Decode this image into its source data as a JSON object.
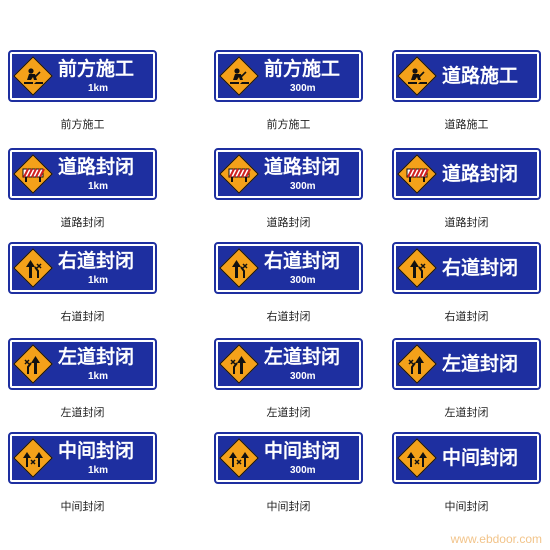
{
  "signs": [
    {
      "title": "前方施工",
      "distance": "1km",
      "caption": "前方施工",
      "icon": "worker-icon"
    },
    {
      "title": "前方施工",
      "distance": "300m",
      "caption": "前方施工",
      "icon": "worker-icon"
    },
    {
      "title": "道路施工",
      "distance": "",
      "caption": "道路施工",
      "icon": "worker-icon"
    },
    {
      "title": "道路封闭",
      "distance": "1km",
      "caption": "道路封闭",
      "icon": "barrier-icon"
    },
    {
      "title": "道路封闭",
      "distance": "300m",
      "caption": "道路封闭",
      "icon": "barrier-icon"
    },
    {
      "title": "道路封闭",
      "distance": "",
      "caption": "道路封闭",
      "icon": "barrier-icon"
    },
    {
      "title": "右道封闭",
      "distance": "1km",
      "caption": "右道封闭",
      "icon": "right-lane-closed-icon"
    },
    {
      "title": "右道封闭",
      "distance": "300m",
      "caption": "右道封闭",
      "icon": "right-lane-closed-icon"
    },
    {
      "title": "右道封闭",
      "distance": "",
      "caption": "右道封闭",
      "icon": "right-lane-closed-icon"
    },
    {
      "title": "左道封闭",
      "distance": "1km",
      "caption": "左道封闭",
      "icon": "left-lane-closed-icon"
    },
    {
      "title": "左道封闭",
      "distance": "300m",
      "caption": "左道封闭",
      "icon": "left-lane-closed-icon"
    },
    {
      "title": "左道封闭",
      "distance": "",
      "caption": "左道封闭",
      "icon": "left-lane-closed-icon"
    },
    {
      "title": "中间封闭",
      "distance": "1km",
      "caption": "中间封闭",
      "icon": "center-lane-closed-icon"
    },
    {
      "title": "中间封闭",
      "distance": "300m",
      "caption": "中间封闭",
      "icon": "center-lane-closed-icon"
    },
    {
      "title": "中间封闭",
      "distance": "",
      "caption": "中间封闭",
      "icon": "center-lane-closed-icon"
    }
  ],
  "watermark": "www.ebdoor.com",
  "colors": {
    "sign_blue": "#1e2fa0",
    "diamond_orange": "#f4a11a",
    "text_white": "#ffffff"
  }
}
